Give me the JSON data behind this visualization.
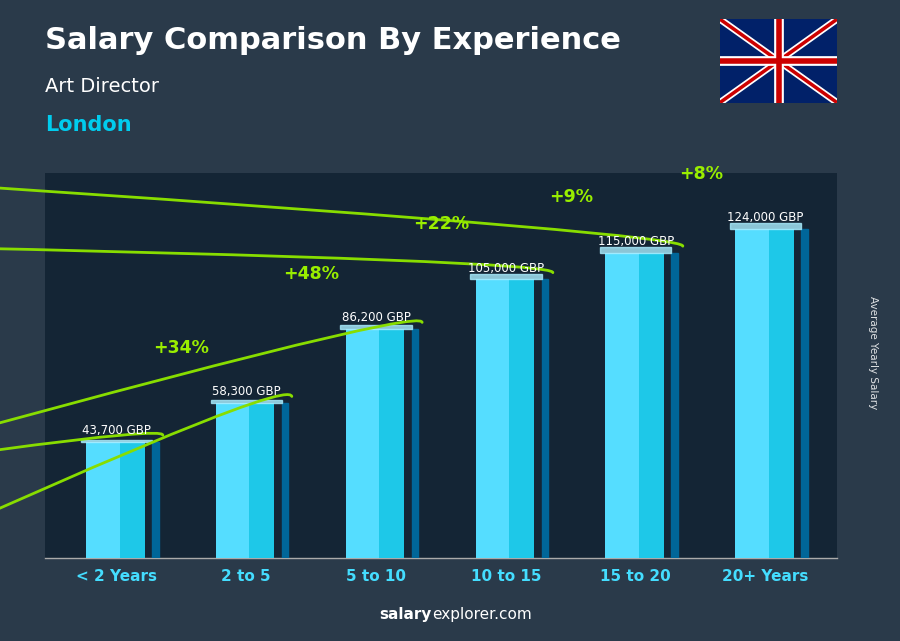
{
  "title": "Salary Comparison By Experience",
  "subtitle1": "Art Director",
  "subtitle2": "London",
  "categories": [
    "< 2 Years",
    "2 to 5",
    "5 to 10",
    "10 to 15",
    "15 to 20",
    "20+ Years"
  ],
  "values": [
    43700,
    58300,
    86200,
    105000,
    115000,
    124000
  ],
  "value_labels": [
    "43,700 GBP",
    "58,300 GBP",
    "86,200 GBP",
    "105,000 GBP",
    "115,000 GBP",
    "124,000 GBP"
  ],
  "pct_labels": [
    "+34%",
    "+48%",
    "+22%",
    "+9%",
    "+8%"
  ],
  "bar_color_main": "#1ec8e8",
  "bar_color_light": "#55ddff",
  "bar_color_dark": "#0088bb",
  "bar_color_side": "#006699",
  "bar_color_top": "#aaeeff",
  "title_color": "#ffffff",
  "subtitle1_color": "#ffffff",
  "subtitle2_color": "#00ccee",
  "value_color": "#ffffff",
  "pct_color": "#99ee00",
  "arrow_color": "#88dd00",
  "xlabel_color": "#44ddff",
  "watermark_bold": "salary",
  "watermark_rest": "explorer.com",
  "watermark_color": "#ffffff",
  "ylabel_text": "Average Yearly Salary",
  "ylim": [
    0,
    145000
  ],
  "bar_width": 0.55,
  "figsize": [
    9.0,
    6.41
  ],
  "dpi": 100,
  "bg_color": "#2a3a4a"
}
